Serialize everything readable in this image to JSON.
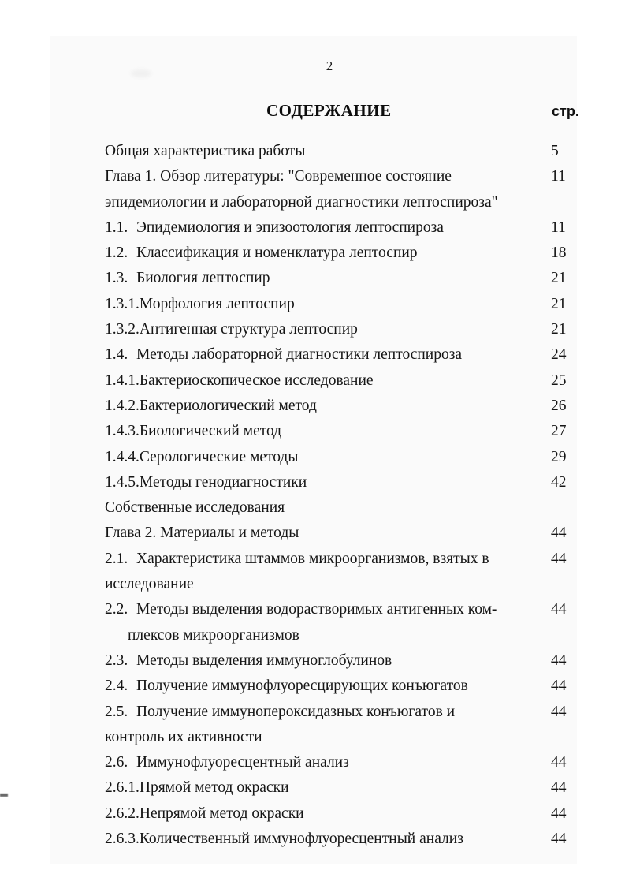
{
  "page": {
    "number": "2"
  },
  "header": {
    "title": "СОДЕРЖАНИЕ",
    "pages_label": "стр."
  },
  "toc": {
    "entries": [
      {
        "num": "",
        "label": "Общая характеристика работы",
        "page": "5"
      },
      {
        "num": "",
        "label": "Глава 1. Обзор литературы: \"Современное состояние",
        "page": "11"
      },
      {
        "num": "",
        "label": "эпидемиологии и лабораторной диагностики лептоспироза\"",
        "page": ""
      },
      {
        "num": "1.1.",
        "label": "Эпидемиология и эпизоотология лептоспироза",
        "page": "11"
      },
      {
        "num": "1.2.",
        "label": "Классификация и номенклатура лептоспир",
        "page": "18"
      },
      {
        "num": "1.3.",
        "label": "Биология лептоспир",
        "page": "21"
      },
      {
        "num": "1.3.1.",
        "label": "Морфология лептоспир",
        "page": "21"
      },
      {
        "num": "1.3.2.",
        "label": "Антигенная структура лептоспир",
        "page": "21"
      },
      {
        "num": "1.4.",
        "label": "Методы лабораторной диагностики лептоспироза",
        "page": "24"
      },
      {
        "num": "1.4.1.",
        "label": "Бактериоскопическое исследование",
        "page": "25"
      },
      {
        "num": "1.4.2.",
        "label": "Бактериологический метод",
        "page": "26"
      },
      {
        "num": "1.4.3.",
        "label": "Биологический метод",
        "page": "27"
      },
      {
        "num": "1.4.4.",
        "label": "Серологические методы",
        "page": "29"
      },
      {
        "num": "1.4.5.",
        "label": "Методы генодиагностики",
        "page": "42"
      },
      {
        "num": "",
        "label": "Собственные исследования",
        "page": ""
      },
      {
        "num": "",
        "label": "Глава 2. Материалы и методы",
        "page": "44"
      },
      {
        "num": "2.1.",
        "label": "Характеристика штаммов микроорганизмов, взятых в",
        "page": "44"
      },
      {
        "num": "",
        "label": "исследование",
        "page": ""
      },
      {
        "num": "2.2.",
        "label": "Методы выделения водорастворимых антигенных ком-",
        "page": "44"
      },
      {
        "num": "",
        "label": "плексов микроорганизмов",
        "page": "",
        "indent": true
      },
      {
        "num": "2.3.",
        "label": "Методы выделения иммуноглобулинов",
        "page": "44"
      },
      {
        "num": "2.4.",
        "label": "Получение иммунофлуоресцирующих конъюгатов",
        "page": "44"
      },
      {
        "num": "2.5.",
        "label": "Получение иммунопероксидазных конъюгатов и",
        "page": "44"
      },
      {
        "num": "",
        "label": "контроль их активности",
        "page": ""
      },
      {
        "num": "2.6.",
        "label": "Иммунофлуоресцентный анализ",
        "page": "44"
      },
      {
        "num": "2.6.1.",
        "label": "Прямой метод окраски",
        "page": "44"
      },
      {
        "num": "2.6.2.",
        "label": "Непрямой метод окраски",
        "page": "44"
      },
      {
        "num": "2.6.3.",
        "label": "Количественный иммунофлуоресцентный анализ",
        "page": "44"
      }
    ]
  }
}
